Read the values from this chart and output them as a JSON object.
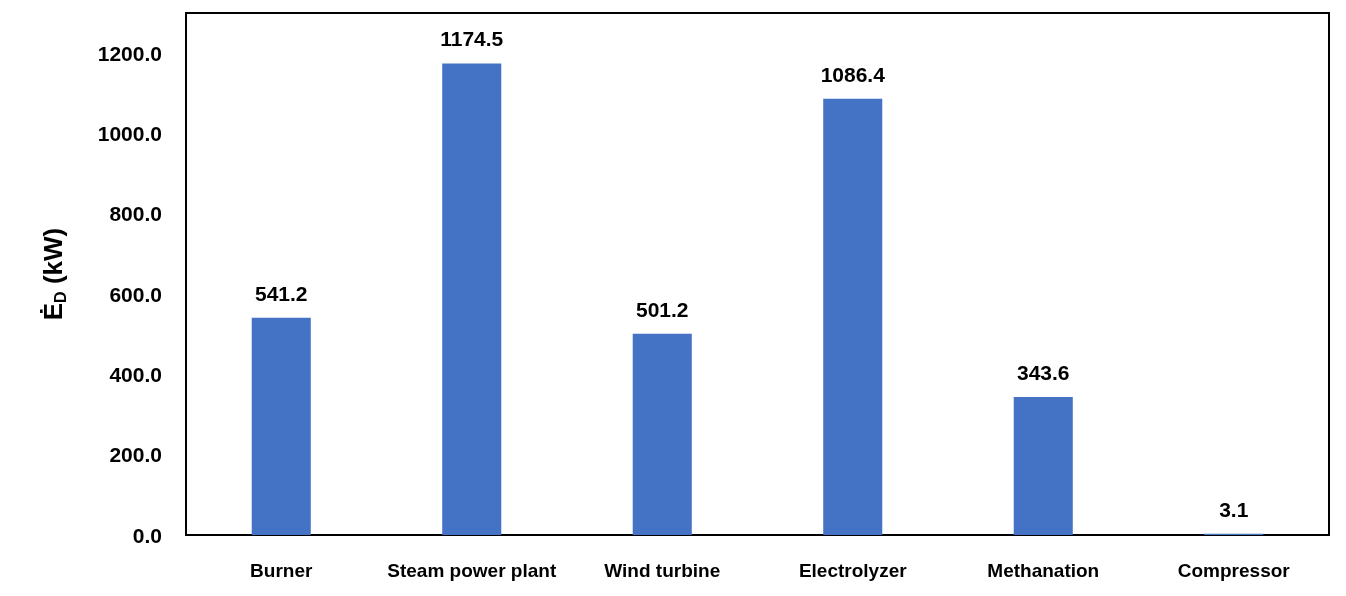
{
  "chart_data": {
    "type": "bar",
    "categories": [
      "Burner",
      "Steam power plant",
      "Wind turbine",
      "Electrolyzer",
      "Methanation",
      "Compressor"
    ],
    "values": [
      541.2,
      1174.5,
      501.2,
      1086.4,
      343.6,
      3.1
    ],
    "color": "#4472c4",
    "ylabel": "Ė$_{D}$ (kW)",
    "ylim": [
      0,
      1300
    ],
    "yticks": [
      {
        "value": 0,
        "label": "0.0"
      },
      {
        "value": 200,
        "label": "200.0"
      },
      {
        "value": 400,
        "label": "400.0"
      },
      {
        "value": 600,
        "label": "600.0"
      },
      {
        "value": 800,
        "label": "800.0"
      },
      {
        "value": 1000,
        "label": "1000.0"
      },
      {
        "value": 1200,
        "label": "1200.0"
      }
    ],
    "data_labels": true,
    "grid": false
  }
}
